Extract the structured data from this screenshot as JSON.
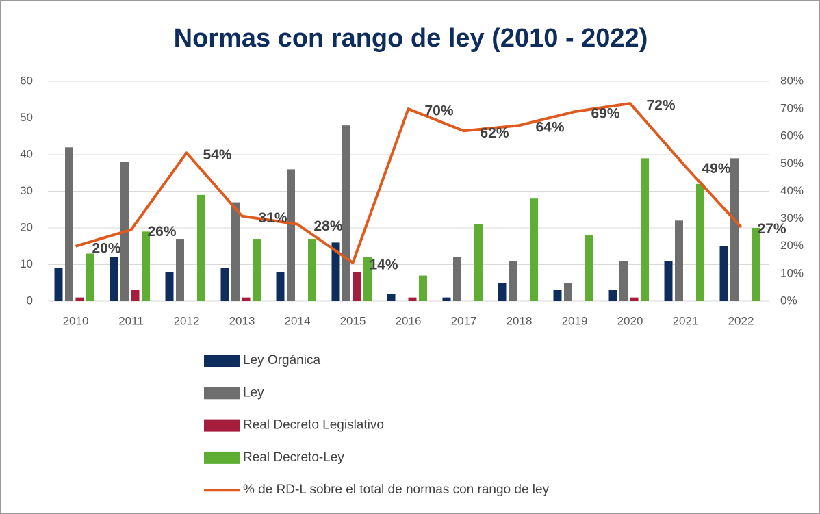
{
  "chart_data": {
    "type": "bar",
    "title": "Normas con rango de ley (2010 - 2022)",
    "categories": [
      "2010",
      "2011",
      "2012",
      "2013",
      "2014",
      "2015",
      "2016",
      "2017",
      "2018",
      "2019",
      "2020",
      "2021",
      "2022"
    ],
    "series": [
      {
        "name": "Ley Orgánica",
        "color": "#0e2d5c",
        "values": [
          9,
          12,
          8,
          9,
          8,
          16,
          2,
          1,
          5,
          3,
          3,
          11,
          15
        ]
      },
      {
        "name": "Ley",
        "color": "#6e6e6e",
        "values": [
          42,
          38,
          17,
          27,
          36,
          48,
          0,
          12,
          11,
          5,
          11,
          22,
          39
        ]
      },
      {
        "name": "Real Decreto Legislativo",
        "color": "#a51c3c",
        "values": [
          1,
          3,
          0,
          1,
          0,
          8,
          1,
          0,
          0,
          0,
          1,
          0,
          0
        ]
      },
      {
        "name": "Real Decreto-Ley",
        "color": "#5fae33",
        "values": [
          13,
          19,
          29,
          17,
          17,
          12,
          7,
          21,
          28,
          18,
          39,
          32,
          20
        ]
      },
      {
        "name": "% de RD-L sobre el total de normas con rango de ley",
        "color": "#e05a1e",
        "type": "line",
        "axis": "y2",
        "values": [
          20,
          26,
          54,
          31,
          28,
          14,
          70,
          62,
          64,
          69,
          72,
          49,
          27
        ],
        "value_labels": [
          "20%",
          "26%",
          "54%",
          "31%",
          "28%",
          "14%",
          "70%",
          "62%",
          "64%",
          "69%",
          "72%",
          "49%",
          "27%"
        ]
      }
    ],
    "ylim": [
      0,
      60
    ],
    "yticks": [
      0,
      10,
      20,
      30,
      40,
      50,
      60
    ],
    "y2lim": [
      0,
      80
    ],
    "y2ticks": [
      {
        "value": 0,
        "label": "0%"
      },
      {
        "value": 10,
        "label": "10%"
      },
      {
        "value": 20,
        "label": "20%"
      },
      {
        "value": 30,
        "label": "30%"
      },
      {
        "value": 40,
        "label": "40%"
      },
      {
        "value": 50,
        "label": "50%"
      },
      {
        "value": 60,
        "label": "60%"
      },
      {
        "value": 70,
        "label": "70%"
      },
      {
        "value": 80,
        "label": "80%"
      }
    ],
    "grid": true,
    "legend": "bottom"
  }
}
